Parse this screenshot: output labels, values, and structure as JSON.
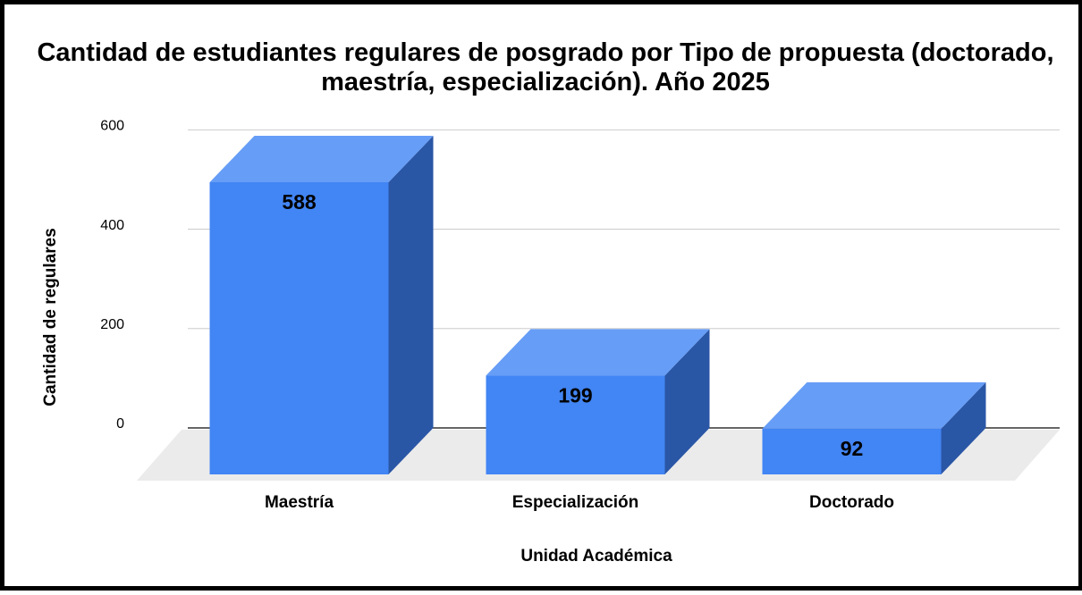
{
  "chart_data": {
    "type": "bar3d",
    "title": "Cantidad de estudiantes regulares de posgrado por Tipo de propuesta (doctorado, maestría, especialización). Año 2025",
    "x_label": "Unidad Académica",
    "y_label": "Cantidad de regulares",
    "categories": [
      "Maestría",
      "Especialización",
      "Doctorado"
    ],
    "values": [
      588,
      199,
      92
    ],
    "color": "#4285f4",
    "ylim": [
      0,
      600
    ],
    "yticks": [
      0,
      200,
      400,
      600
    ],
    "grid": true
  }
}
